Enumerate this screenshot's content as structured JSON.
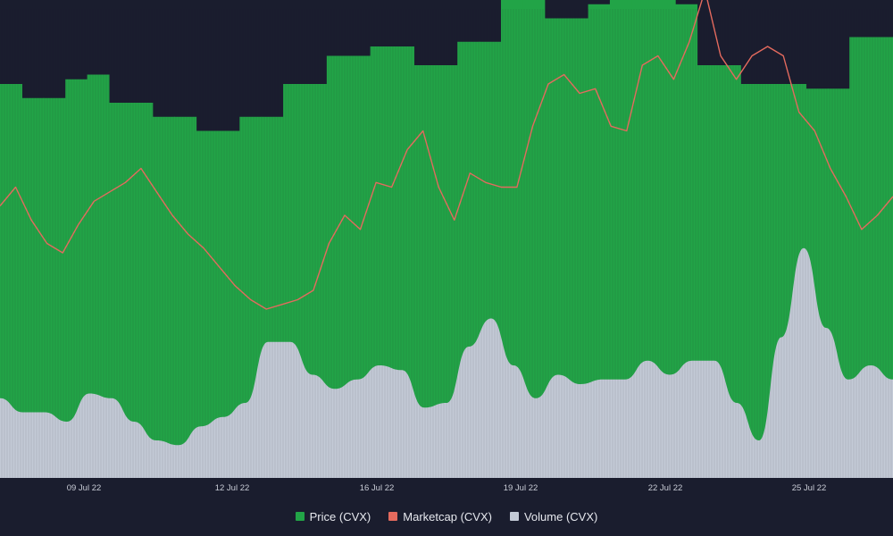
{
  "colors": {
    "background": "#1a1d2e",
    "price": "#22a447",
    "marketcap": "#e46a5e",
    "volume": "#c3cad6"
  },
  "chart_data": {
    "type": "area",
    "title": "",
    "x_ticks": [
      "09 Jul 22",
      "12 Jul 22",
      "16 Jul 22",
      "19 Jul 22",
      "22 Jul 22",
      "25 Jul 22"
    ],
    "legend_position": "bottom-center",
    "grid": false,
    "series": [
      {
        "name": "Price (CVX)",
        "kind": "stepped-bar",
        "color": "#22a447",
        "values": [
          0.84,
          0.81,
          0.81,
          0.85,
          0.86,
          0.8,
          0.8,
          0.77,
          0.77,
          0.74,
          0.74,
          0.77,
          0.77,
          0.84,
          0.84,
          0.9,
          0.9,
          0.92,
          0.92,
          0.88,
          0.88,
          0.93,
          0.93,
          1.03,
          1.03,
          0.98,
          0.98,
          1.01,
          1.02,
          1.02,
          1.02,
          1.01,
          0.88,
          0.88,
          0.84,
          0.84,
          0.84,
          0.83,
          0.83,
          0.94,
          0.94
        ]
      },
      {
        "name": "Marketcap (CVX)",
        "kind": "line",
        "color": "#e46a5e",
        "values": [
          0.58,
          0.62,
          0.55,
          0.5,
          0.48,
          0.54,
          0.59,
          0.61,
          0.63,
          0.66,
          0.61,
          0.56,
          0.52,
          0.49,
          0.45,
          0.41,
          0.38,
          0.36,
          0.37,
          0.38,
          0.4,
          0.5,
          0.56,
          0.53,
          0.63,
          0.62,
          0.7,
          0.74,
          0.62,
          0.55,
          0.65,
          0.63,
          0.62,
          0.62,
          0.75,
          0.84,
          0.86,
          0.82,
          0.83,
          0.75,
          0.74,
          0.88,
          0.9,
          0.85,
          0.93,
          1.04,
          0.9,
          0.85,
          0.9,
          0.92,
          0.9,
          0.78,
          0.74,
          0.66,
          0.6,
          0.53,
          0.56,
          0.6
        ]
      },
      {
        "name": "Volume (CVX)",
        "kind": "area",
        "color": "#c3cad6",
        "values": [
          0.17,
          0.14,
          0.14,
          0.12,
          0.18,
          0.17,
          0.12,
          0.08,
          0.07,
          0.11,
          0.13,
          0.16,
          0.29,
          0.29,
          0.22,
          0.19,
          0.21,
          0.24,
          0.23,
          0.15,
          0.16,
          0.28,
          0.34,
          0.24,
          0.17,
          0.22,
          0.2,
          0.21,
          0.21,
          0.25,
          0.22,
          0.25,
          0.25,
          0.16,
          0.08,
          0.3,
          0.49,
          0.32,
          0.21,
          0.24,
          0.21
        ]
      }
    ]
  }
}
